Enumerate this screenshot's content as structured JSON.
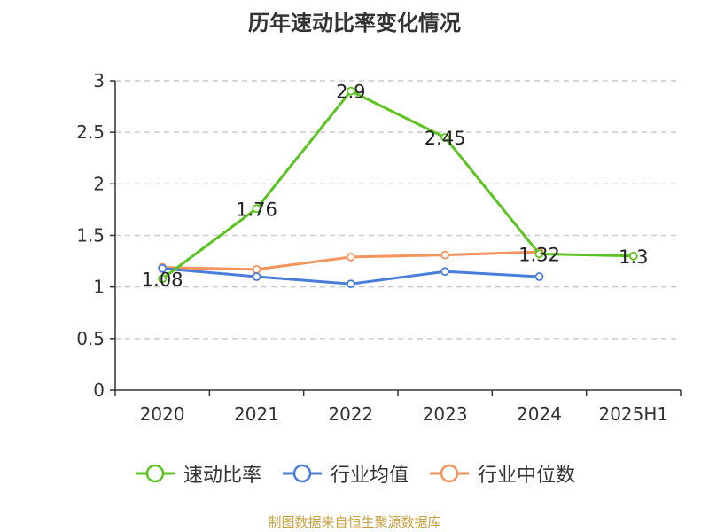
{
  "title": "历年速动比率变化情况",
  "source_text": "制图数据来自恒生聚源数据库",
  "colors": {
    "axis": "#333333",
    "grid": "#cccccc"
  },
  "chart_data": {
    "type": "line",
    "title": "历年速动比率变化情况",
    "categories": [
      "2020",
      "2021",
      "2022",
      "2023",
      "2024",
      "2025H1"
    ],
    "ylim": [
      0,
      3
    ],
    "yticks": [
      "0",
      "0.5",
      "1",
      "1.5",
      "2",
      "2.5",
      "3"
    ],
    "grid": true,
    "legend_position": "bottom",
    "series": [
      {
        "name": "速动比率",
        "color": "#5cc420",
        "values": [
          1.08,
          1.76,
          2.9,
          2.45,
          1.32,
          1.3
        ],
        "labels": [
          "1.08",
          "1.76",
          "2.9",
          "2.45",
          "1.32",
          "1.3"
        ]
      },
      {
        "name": "行业均值",
        "color": "#4a7ddb",
        "values": [
          1.18,
          1.1,
          1.03,
          1.15,
          1.1,
          null
        ]
      },
      {
        "name": "行业中位数",
        "color": "#f5935c",
        "values": [
          1.19,
          1.17,
          1.29,
          1.31,
          1.34,
          null
        ]
      }
    ]
  }
}
